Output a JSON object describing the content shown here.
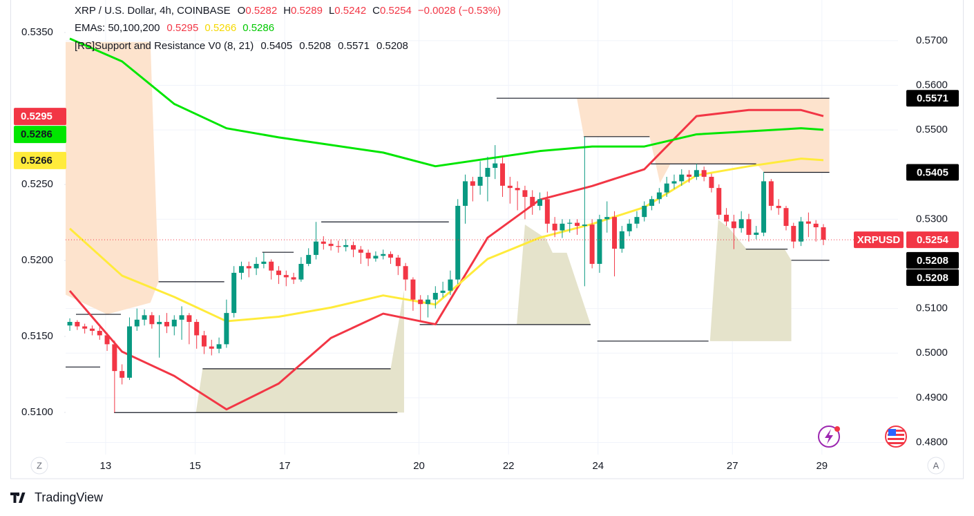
{
  "chart_data": {
    "type": "candlestick",
    "title": "XRP / U.S. Dollar, 4h, COINBASE",
    "ohlc_labels": [
      "O",
      "H",
      "L",
      "C"
    ],
    "change": "−0.0028 (−0.53%)",
    "ema_legend": "EMAs: 50,100,200",
    "sr_legend": "[RS]Support and Resistance V0 (8, 21)",
    "sr_values": [
      0.5405,
      0.5208,
      0.5571,
      0.5208
    ],
    "symbol": "XRPUSD",
    "axis_buttons": [
      "Z",
      "A"
    ],
    "branding": "TradingView",
    "up_color": "#089981",
    "down_color": "#f23645",
    "grid": true,
    "xlim": [
      -0.56,
      111
    ],
    "xticks": [
      {
        "value": 4.8,
        "label": "13"
      },
      {
        "value": 16.8,
        "label": "15"
      },
      {
        "value": 28.8,
        "label": "17"
      },
      {
        "value": 46.8,
        "label": "20"
      },
      {
        "value": 58.8,
        "label": "22"
      },
      {
        "value": 70.8,
        "label": "24"
      },
      {
        "value": 88.8,
        "label": "27"
      },
      {
        "value": 100.8,
        "label": "29"
      }
    ],
    "ylim": [
      0.4773,
      0.5791
    ],
    "yticks": [
      {
        "value": 0.48,
        "label": "0.4800"
      },
      {
        "value": 0.49,
        "label": "0.4900"
      },
      {
        "value": 0.5,
        "label": "0.5000"
      },
      {
        "value": 0.51,
        "label": "0.5100"
      },
      {
        "value": 0.53,
        "label": "0.5300"
      },
      {
        "value": 0.55,
        "label": "0.5500"
      },
      {
        "value": 0.56,
        "label": "0.5600"
      },
      {
        "value": 0.57,
        "label": "0.5700"
      }
    ],
    "y2lim": [
      0.50723,
      0.53714
    ],
    "y2ticks": [
      {
        "value": 0.535,
        "label": "0.5350"
      },
      {
        "value": 0.525,
        "label": "0.5250"
      },
      {
        "value": 0.52,
        "label": "0.5200"
      },
      {
        "value": 0.515,
        "label": "0.5150"
      },
      {
        "value": 0.51,
        "label": "0.5100"
      }
    ],
    "candles": [
      [
        0.5062,
        0.5078,
        0.505,
        0.507
      ],
      [
        0.507,
        0.5074,
        0.5052,
        0.506
      ],
      [
        0.506,
        0.5066,
        0.5044,
        0.5055
      ],
      [
        0.5055,
        0.5062,
        0.504,
        0.505
      ],
      [
        0.505,
        0.5058,
        0.503,
        0.504
      ],
      [
        0.504,
        0.5046,
        0.5005,
        0.502
      ],
      [
        0.502,
        0.5028,
        0.4867,
        0.496
      ],
      [
        0.496,
        0.4975,
        0.493,
        0.4945
      ],
      [
        0.4945,
        0.508,
        0.494,
        0.506
      ],
      [
        0.506,
        0.51,
        0.505,
        0.5075
      ],
      [
        0.5075,
        0.5098,
        0.5062,
        0.5085
      ],
      [
        0.5085,
        0.5092,
        0.5055,
        0.5065
      ],
      [
        0.5065,
        0.5085,
        0.499,
        0.507
      ],
      [
        0.507,
        0.509,
        0.5045,
        0.506
      ],
      [
        0.506,
        0.5085,
        0.504,
        0.5075
      ],
      [
        0.5075,
        0.5105,
        0.503,
        0.5085
      ],
      [
        0.5085,
        0.509,
        0.502,
        0.507
      ],
      [
        0.507,
        0.5076,
        0.501,
        0.504
      ],
      [
        0.504,
        0.505,
        0.4998,
        0.5015
      ],
      [
        0.5015,
        0.503,
        0.4995,
        0.501
      ],
      [
        0.501,
        0.5035,
        0.5,
        0.502
      ],
      [
        0.502,
        0.512,
        0.5012,
        0.509
      ],
      [
        0.509,
        0.5195,
        0.508,
        0.518
      ],
      [
        0.518,
        0.5205,
        0.5165,
        0.5195
      ],
      [
        0.5195,
        0.5205,
        0.517,
        0.519
      ],
      [
        0.519,
        0.5215,
        0.5175,
        0.52
      ],
      [
        0.52,
        0.5225,
        0.519,
        0.5205
      ],
      [
        0.5205,
        0.521,
        0.5165,
        0.5185
      ],
      [
        0.5185,
        0.5195,
        0.5155,
        0.5175
      ],
      [
        0.5175,
        0.5185,
        0.515,
        0.517
      ],
      [
        0.517,
        0.518,
        0.5155,
        0.5165
      ],
      [
        0.5165,
        0.5215,
        0.516,
        0.52
      ],
      [
        0.52,
        0.5235,
        0.5195,
        0.522
      ],
      [
        0.522,
        0.5294,
        0.521,
        0.525
      ],
      [
        0.525,
        0.5262,
        0.5232,
        0.5245
      ],
      [
        0.5245,
        0.5255,
        0.523,
        0.524
      ],
      [
        0.524,
        0.5252,
        0.5225,
        0.5238
      ],
      [
        0.5238,
        0.5255,
        0.5228,
        0.5242
      ],
      [
        0.5242,
        0.525,
        0.5215,
        0.5232
      ],
      [
        0.5232,
        0.524,
        0.52,
        0.5225
      ],
      [
        0.5225,
        0.5232,
        0.5195,
        0.5212
      ],
      [
        0.5212,
        0.5228,
        0.5205,
        0.5218
      ],
      [
        0.5218,
        0.5232,
        0.521,
        0.5222
      ],
      [
        0.5222,
        0.5228,
        0.52,
        0.5214
      ],
      [
        0.5214,
        0.522,
        0.5175,
        0.5195
      ],
      [
        0.5195,
        0.5202,
        0.514,
        0.5165
      ],
      [
        0.5165,
        0.517,
        0.5095,
        0.512
      ],
      [
        0.512,
        0.513,
        0.507,
        0.511
      ],
      [
        0.511,
        0.513,
        0.508,
        0.512
      ],
      [
        0.512,
        0.515,
        0.51,
        0.5135
      ],
      [
        0.5135,
        0.516,
        0.5125,
        0.514
      ],
      [
        0.514,
        0.5185,
        0.513,
        0.5165
      ],
      [
        0.5165,
        0.5345,
        0.5155,
        0.533
      ],
      [
        0.533,
        0.54,
        0.529,
        0.5385
      ],
      [
        0.5385,
        0.5395,
        0.534,
        0.5375
      ],
      [
        0.5375,
        0.543,
        0.5355,
        0.5395
      ],
      [
        0.5395,
        0.544,
        0.534,
        0.5415
      ],
      [
        0.5415,
        0.5466,
        0.539,
        0.5425
      ],
      [
        0.5425,
        0.544,
        0.535,
        0.5375
      ],
      [
        0.5375,
        0.5395,
        0.5335,
        0.537
      ],
      [
        0.537,
        0.5385,
        0.532,
        0.5365
      ],
      [
        0.5365,
        0.5375,
        0.53,
        0.535
      ],
      [
        0.535,
        0.5365,
        0.531,
        0.533
      ],
      [
        0.533,
        0.536,
        0.532,
        0.5345
      ],
      [
        0.5345,
        0.5362,
        0.527,
        0.529
      ],
      [
        0.529,
        0.5305,
        0.526,
        0.5275
      ],
      [
        0.5275,
        0.53,
        0.5258,
        0.529
      ],
      [
        0.529,
        0.53,
        0.527,
        0.5292
      ],
      [
        0.5292,
        0.53,
        0.5265,
        0.5285
      ],
      [
        0.5285,
        0.5485,
        0.515,
        0.5288
      ],
      [
        0.5288,
        0.53,
        0.519,
        0.52
      ],
      [
        0.52,
        0.531,
        0.518,
        0.53
      ],
      [
        0.53,
        0.534,
        0.527,
        0.5305
      ],
      [
        0.5305,
        0.5318,
        0.5172,
        0.5234
      ],
      [
        0.5234,
        0.5285,
        0.5225,
        0.5273
      ],
      [
        0.5273,
        0.53,
        0.5262,
        0.529
      ],
      [
        0.529,
        0.5318,
        0.528,
        0.5305
      ],
      [
        0.5305,
        0.534,
        0.5295,
        0.533
      ],
      [
        0.533,
        0.5352,
        0.532,
        0.5345
      ],
      [
        0.5345,
        0.537,
        0.5335,
        0.536
      ],
      [
        0.536,
        0.5395,
        0.535,
        0.538
      ],
      [
        0.538,
        0.54,
        0.5368,
        0.5385
      ],
      [
        0.5385,
        0.5412,
        0.5375,
        0.54
      ],
      [
        0.54,
        0.541,
        0.5382,
        0.5395
      ],
      [
        0.5395,
        0.5424,
        0.5388,
        0.541
      ],
      [
        0.541,
        0.5418,
        0.5385,
        0.5395
      ],
      [
        0.5395,
        0.5402,
        0.536,
        0.537
      ],
      [
        0.537,
        0.5378,
        0.53,
        0.531
      ],
      [
        0.531,
        0.5325,
        0.5285,
        0.5295
      ],
      [
        0.5295,
        0.531,
        0.5233,
        0.528
      ],
      [
        0.528,
        0.5318,
        0.527,
        0.53
      ],
      [
        0.53,
        0.5312,
        0.525,
        0.5265
      ],
      [
        0.5265,
        0.5285,
        0.5255,
        0.527
      ],
      [
        0.527,
        0.5406,
        0.5262,
        0.5385
      ],
      [
        0.5385,
        0.539,
        0.532,
        0.533
      ],
      [
        0.533,
        0.5345,
        0.531,
        0.5325
      ],
      [
        0.5325,
        0.533,
        0.5275,
        0.5285
      ],
      [
        0.5285,
        0.5292,
        0.5235,
        0.525
      ],
      [
        0.525,
        0.5305,
        0.524,
        0.5295
      ],
      [
        0.5295,
        0.5315,
        0.526,
        0.529
      ],
      [
        0.529,
        0.5298,
        0.525,
        0.5282
      ],
      [
        0.5282,
        0.5289,
        0.5242,
        0.5254
      ]
    ],
    "series": [
      {
        "color": "#f23645",
        "axis": "y2",
        "x": [
          0,
          7,
          14,
          21,
          28,
          35,
          42,
          49,
          56,
          63,
          70,
          77,
          84,
          91,
          98,
          101
        ],
        "values": [
          0.518,
          0.514,
          0.5124,
          0.5102,
          0.5119,
          0.5149,
          0.5165,
          0.5158,
          0.5215,
          0.524,
          0.5249,
          0.526,
          0.5295,
          0.5299,
          0.5299,
          0.5295
        ]
      },
      {
        "color": "#ffeb3b",
        "axis": "y2",
        "x": [
          0,
          7,
          14,
          21,
          28,
          35,
          42,
          49,
          56,
          63,
          70,
          77,
          84,
          91,
          98,
          101
        ],
        "values": [
          0.5221,
          0.519,
          0.5176,
          0.516,
          0.5163,
          0.5169,
          0.5177,
          0.5171,
          0.5201,
          0.5215,
          0.5224,
          0.5235,
          0.5256,
          0.5262,
          0.5267,
          0.5266
        ]
      },
      {
        "color": "#00e600",
        "axis": "y2",
        "x": [
          0,
          7,
          14,
          21,
          28,
          35,
          42,
          49,
          56,
          63,
          70,
          77,
          84,
          91,
          98,
          101
        ],
        "values": [
          0.5346,
          0.5331,
          0.5303,
          0.5287,
          0.5281,
          0.5276,
          0.5271,
          0.5262,
          0.5267,
          0.5272,
          0.5275,
          0.5275,
          0.5283,
          0.5285,
          0.5287,
          0.5286
        ]
      }
    ],
    "levels": [
      {
        "x": [
          -0.56,
          4.07
        ],
        "value": 0.4969
      },
      {
        "x": [
          0.83,
          6.85
        ],
        "value": 0.5087
      },
      {
        "x": [
          5.93,
          43.9
        ],
        "value": 0.4867
      },
      {
        "x": [
          11.9,
          20.7
        ],
        "value": 0.516
      },
      {
        "x": [
          17.8,
          43.0
        ],
        "value": 0.4965
      },
      {
        "x": [
          25.8,
          30.0
        ],
        "value": 0.5226
      },
      {
        "x": [
          33.7,
          50.8
        ],
        "value": 0.5294
      },
      {
        "x": [
          46.9,
          69.8
        ],
        "value": 0.5064
      },
      {
        "x": [
          57.2,
          101.8
        ],
        "value": 0.5571
      },
      {
        "x": [
          68.9,
          77.7
        ],
        "value": 0.5485
      },
      {
        "x": [
          70.7,
          85.6
        ],
        "value": 0.5027
      },
      {
        "x": [
          77.7,
          92.0
        ],
        "value": 0.5424
      },
      {
        "x": [
          90.6,
          96.2
        ],
        "value": 0.5233
      },
      {
        "x": [
          93.0,
          101.8
        ],
        "value": 0.5405
      },
      {
        "x": [
          96.7,
          101.8
        ],
        "value": 0.5208
      }
    ],
    "zones": [
      {
        "color": "#fde3cd",
        "x": [
          -0.56,
          5,
          10.8,
          11.9
        ],
        "upper": [
          0.5697,
          0.5697,
          0.5697,
          0.516
        ],
        "lower": [
          0.5131,
          0.5087,
          0.5113,
          0.516
        ]
      },
      {
        "color": "#fde3cd",
        "x": [
          67.96,
          68.9,
          77.7,
          79.1,
          80.5,
          92.0,
          93.0,
          101.8
        ],
        "upper": [
          0.5571,
          0.5571,
          0.5571,
          0.5571,
          0.5571,
          0.5571,
          0.5571,
          0.5571
        ],
        "lower": [
          0.5571,
          0.5485,
          0.5485,
          0.5381,
          0.5424,
          0.5424,
          0.5406,
          0.5406
        ]
      },
      {
        "color": "#e5e3cb",
        "x": [
          16.9,
          17.8,
          43.0,
          44.8
        ],
        "upper": [
          0.4867,
          0.4965,
          0.4965,
          0.5141
        ],
        "lower": [
          0.4867,
          0.4867,
          0.4867,
          0.4867
        ]
      },
      {
        "color": "#e5e3cb",
        "x": [
          59.9,
          61.0,
          63.8,
          64.7,
          66.6,
          69.8
        ],
        "upper": [
          0.5064,
          0.5288,
          0.5257,
          0.5225,
          0.5225,
          0.5064
        ],
        "lower": [
          0.5064,
          0.5064,
          0.5064,
          0.5064,
          0.5064,
          0.5064
        ]
      },
      {
        "color": "#e5e3cb",
        "x": [
          85.8,
          86.9,
          88.3,
          90.7,
          95.8,
          96.7
        ],
        "upper": [
          0.5027,
          0.5299,
          0.5281,
          0.5233,
          0.5233,
          0.5208
        ],
        "lower": [
          0.5027,
          0.5027,
          0.5027,
          0.5027,
          0.5027,
          0.5027
        ]
      }
    ]
  }
}
